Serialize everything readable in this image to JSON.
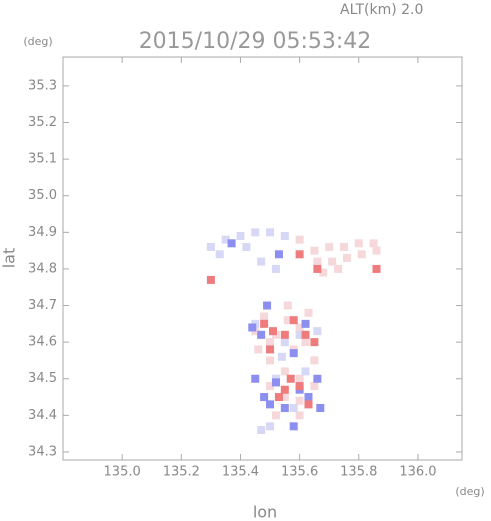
{
  "chart_data": {
    "type": "scatter",
    "title": "2015/10/29 05:53:42",
    "annotation": "ALT(km) 2.0",
    "xlabel": "lon",
    "ylabel": "lat",
    "xunit": "(deg)",
    "yunit": "(deg)",
    "xlim": [
      134.8,
      136.149
    ],
    "ylim": [
      34.278,
      35.379
    ],
    "xticks": [
      {
        "value": 135,
        "label": "135.0"
      },
      {
        "value": 135.2,
        "label": "135.2"
      },
      {
        "value": 135.4,
        "label": "135.4"
      },
      {
        "value": 135.6,
        "label": "135.6"
      },
      {
        "value": 135.8,
        "label": "135.8"
      },
      {
        "value": 136,
        "label": "136.0"
      }
    ],
    "yticks": [
      34.3,
      34.4,
      34.5,
      34.6,
      34.7,
      34.8,
      34.9,
      {
        "value": 35,
        "label": "35.0"
      },
      35.1,
      35.2,
      35.3
    ],
    "series": [
      {
        "color": "#f6d8da",
        "x": [
          135.65,
          135.7,
          135.75,
          135.8,
          135.85,
          135.66,
          135.71,
          135.76,
          135.81,
          135.86,
          135.68,
          135.73,
          135.6,
          135.56,
          135.6,
          135.52,
          135.58,
          135.62,
          135.5,
          135.55,
          135.6,
          135.65,
          135.55,
          135.6,
          135.5,
          135.45,
          135.48,
          135.63,
          135.56,
          135.6,
          135.52,
          135.65,
          135.5,
          135.46
        ],
        "y": [
          34.85,
          34.86,
          34.86,
          34.87,
          34.87,
          34.82,
          34.82,
          34.83,
          34.84,
          34.85,
          34.79,
          34.8,
          34.88,
          34.66,
          34.64,
          34.62,
          34.58,
          34.6,
          34.55,
          34.52,
          34.5,
          34.48,
          34.45,
          34.44,
          34.48,
          34.63,
          34.67,
          34.68,
          34.7,
          34.4,
          34.4,
          34.55,
          34.6,
          34.58
        ]
      },
      {
        "color": "#d6d8f6",
        "x": [
          135.3,
          135.35,
          135.4,
          135.45,
          135.5,
          135.55,
          135.33,
          135.42,
          135.47,
          135.52,
          135.45,
          135.55,
          135.62,
          135.52,
          135.58,
          135.5,
          135.47,
          135.6,
          135.66,
          135.54
        ],
        "y": [
          34.86,
          34.88,
          34.89,
          34.9,
          34.9,
          34.89,
          34.84,
          34.86,
          34.82,
          34.8,
          34.65,
          34.6,
          34.52,
          34.5,
          34.42,
          34.37,
          34.36,
          34.62,
          34.63,
          34.56
        ]
      },
      {
        "color": "#8c8ef0",
        "x": [
          135.44,
          135.47,
          135.58,
          135.52,
          135.48,
          135.6,
          135.63,
          135.55,
          135.5,
          135.66,
          135.37,
          135.53,
          135.49,
          135.62,
          135.45,
          135.67,
          135.58
        ],
        "y": [
          34.64,
          34.62,
          34.57,
          34.49,
          34.45,
          34.47,
          34.45,
          34.42,
          34.43,
          34.5,
          34.87,
          34.84,
          34.7,
          34.65,
          34.5,
          34.42,
          34.37
        ]
      },
      {
        "color": "#ee7c7c",
        "x": [
          135.58,
          135.62,
          135.65,
          135.55,
          135.5,
          135.6,
          135.57,
          135.63,
          135.53,
          135.51,
          135.86,
          135.3,
          135.66,
          135.6,
          135.55,
          135.48
        ],
        "y": [
          34.66,
          34.62,
          34.6,
          34.62,
          34.58,
          34.48,
          34.5,
          34.43,
          34.45,
          34.63,
          34.8,
          34.77,
          34.8,
          34.84,
          34.47,
          34.65
        ]
      }
    ]
  }
}
